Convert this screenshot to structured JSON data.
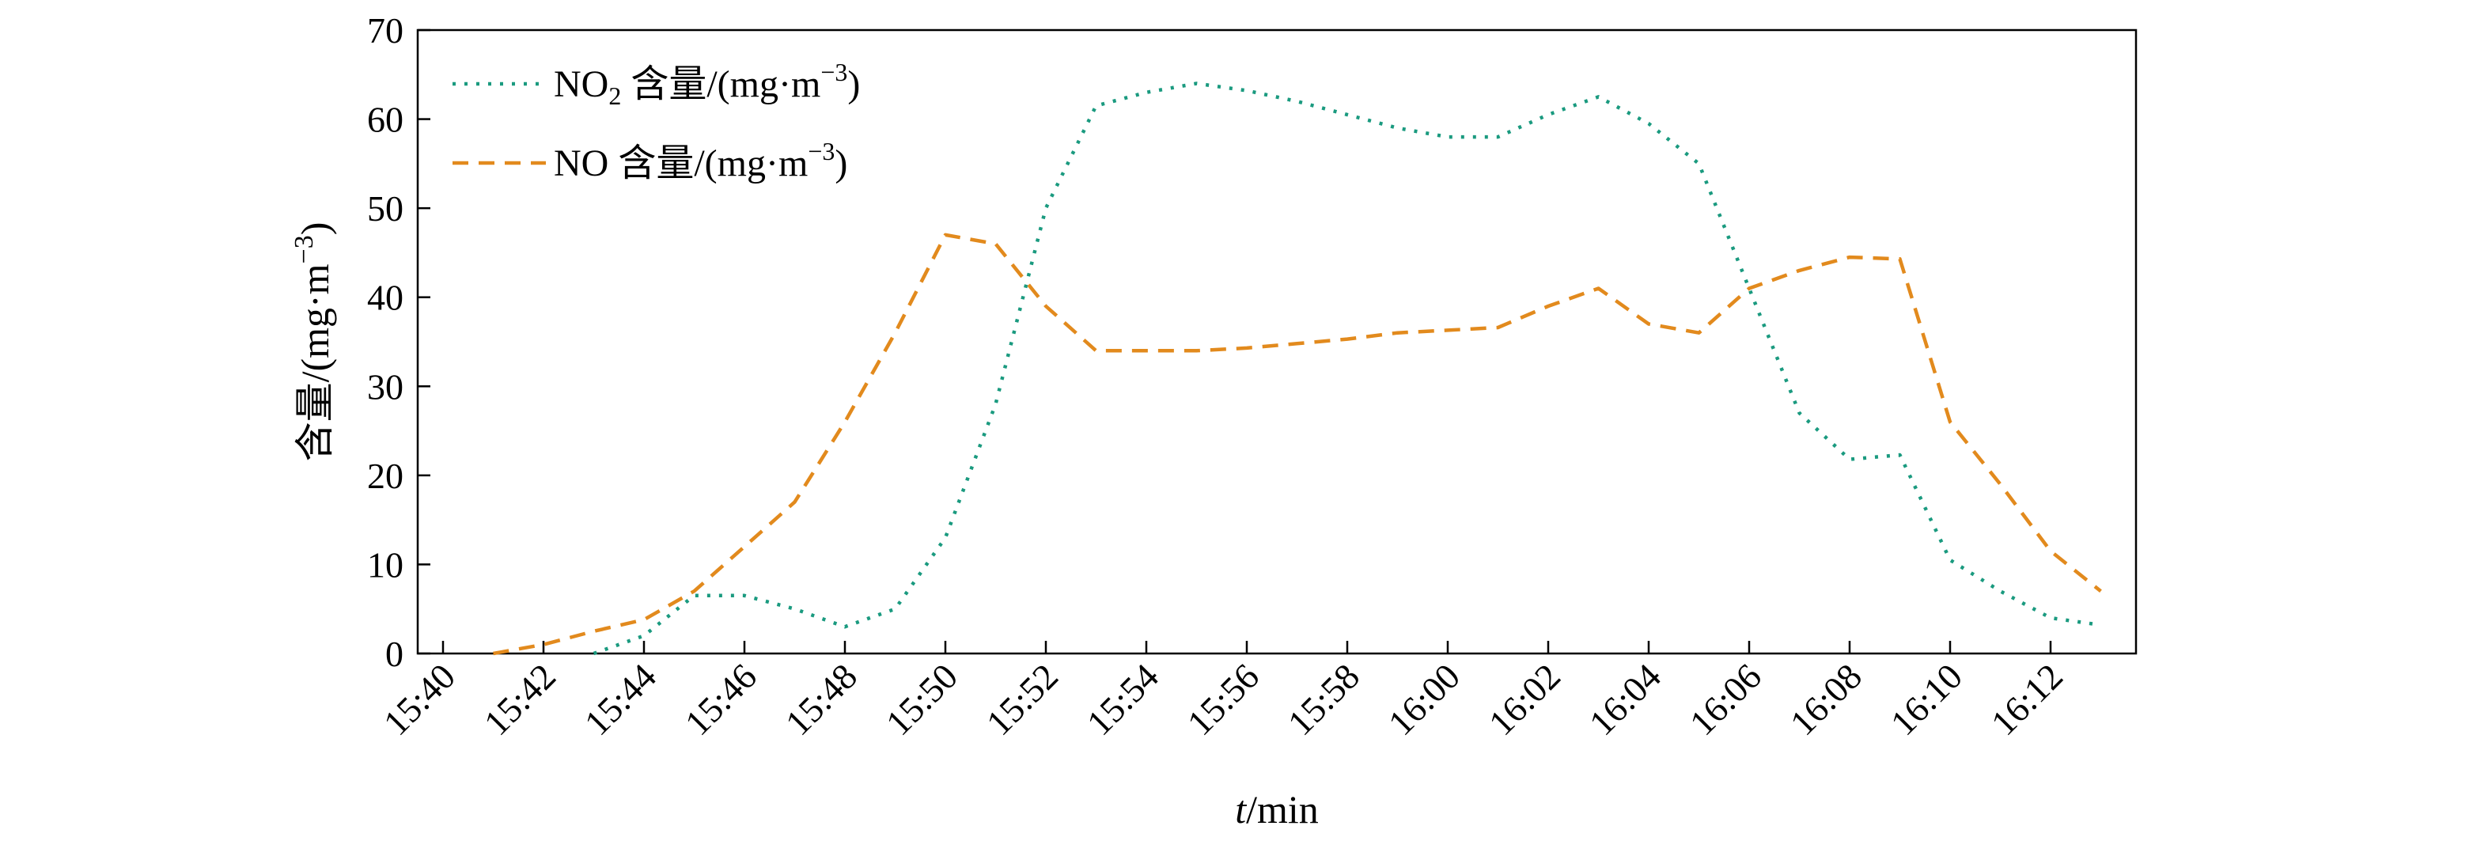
{
  "chart_data": {
    "type": "line",
    "title": "",
    "xlabel_italic": "t",
    "xlabel_rest": "/min",
    "ylabel": "含量/(mg·m",
    "ylabel_sup": "−3",
    "ylabel_close": ")",
    "ylim": [
      0,
      70
    ],
    "yticks": [
      "0",
      "10",
      "20",
      "30",
      "40",
      "50",
      "60",
      "70"
    ],
    "xticks": [
      "15:40",
      "15:42",
      "15:44",
      "15:46",
      "15:48",
      "15:50",
      "15:52",
      "15:54",
      "15:56",
      "15:58",
      "16:00",
      "16:02",
      "16:04",
      "16:06",
      "16:08",
      "16:10",
      "16:12"
    ],
    "legend_position": "top-left",
    "series": [
      {
        "name_main": "NO",
        "name_sub": "2",
        "name_rest": " 含量/(mg·m",
        "name_sup": "−3",
        "name_close": ")",
        "color": "#1a9a7f",
        "style": "dotted",
        "points": [
          [
            "15:43",
            0
          ],
          [
            "15:44",
            2
          ],
          [
            "15:45",
            6.5
          ],
          [
            "15:46",
            6.5
          ],
          [
            "15:47",
            5
          ],
          [
            "15:48",
            3
          ],
          [
            "15:49",
            5
          ],
          [
            "15:50",
            13
          ],
          [
            "15:51",
            28
          ],
          [
            "15:52",
            50
          ],
          [
            "15:53",
            61.5
          ],
          [
            "15:54",
            63
          ],
          [
            "15:55",
            64
          ],
          [
            "15:56",
            63.2
          ],
          [
            "15:57",
            62
          ],
          [
            "15:58",
            60.5
          ],
          [
            "15:59",
            59
          ],
          [
            "16:00",
            58
          ],
          [
            "16:01",
            58
          ],
          [
            "16:02",
            60.5
          ],
          [
            "16:03",
            62.5
          ],
          [
            "16:04",
            59.5
          ],
          [
            "16:05",
            55
          ],
          [
            "16:06",
            41
          ],
          [
            "16:07",
            27
          ],
          [
            "16:08",
            21.8
          ],
          [
            "16:09",
            22.3
          ],
          [
            "16:10",
            10.5
          ],
          [
            "16:11",
            7
          ],
          [
            "16:12",
            4
          ],
          [
            "16:13",
            3.2
          ]
        ]
      },
      {
        "name_main": "NO",
        "name_sub": "",
        "name_rest": " 含量/(mg·m",
        "name_sup": "−3",
        "name_close": ")",
        "color": "#e28a1d",
        "style": "dashed",
        "points": [
          [
            "15:41",
            0
          ],
          [
            "15:42",
            1
          ],
          [
            "15:43",
            2.5
          ],
          [
            "15:44",
            3.8
          ],
          [
            "15:45",
            7
          ],
          [
            "15:46",
            12
          ],
          [
            "15:47",
            17
          ],
          [
            "15:48",
            26
          ],
          [
            "15:49",
            36
          ],
          [
            "15:50",
            47
          ],
          [
            "15:51",
            46
          ],
          [
            "15:52",
            39
          ],
          [
            "15:53",
            34
          ],
          [
            "15:54",
            34
          ],
          [
            "15:55",
            34
          ],
          [
            "15:56",
            34.3
          ],
          [
            "15:57",
            34.8
          ],
          [
            "15:58",
            35.3
          ],
          [
            "15:59",
            36
          ],
          [
            "16:00",
            36.3
          ],
          [
            "16:01",
            36.6
          ],
          [
            "16:02",
            39
          ],
          [
            "16:03",
            41
          ],
          [
            "16:04",
            37
          ],
          [
            "16:05",
            36
          ],
          [
            "16:06",
            41
          ],
          [
            "16:07",
            43
          ],
          [
            "16:08",
            44.5
          ],
          [
            "16:09",
            44.3
          ],
          [
            "16:10",
            26
          ],
          [
            "16:11",
            19
          ],
          [
            "16:12",
            11.5
          ],
          [
            "16:13",
            7
          ]
        ]
      }
    ]
  }
}
